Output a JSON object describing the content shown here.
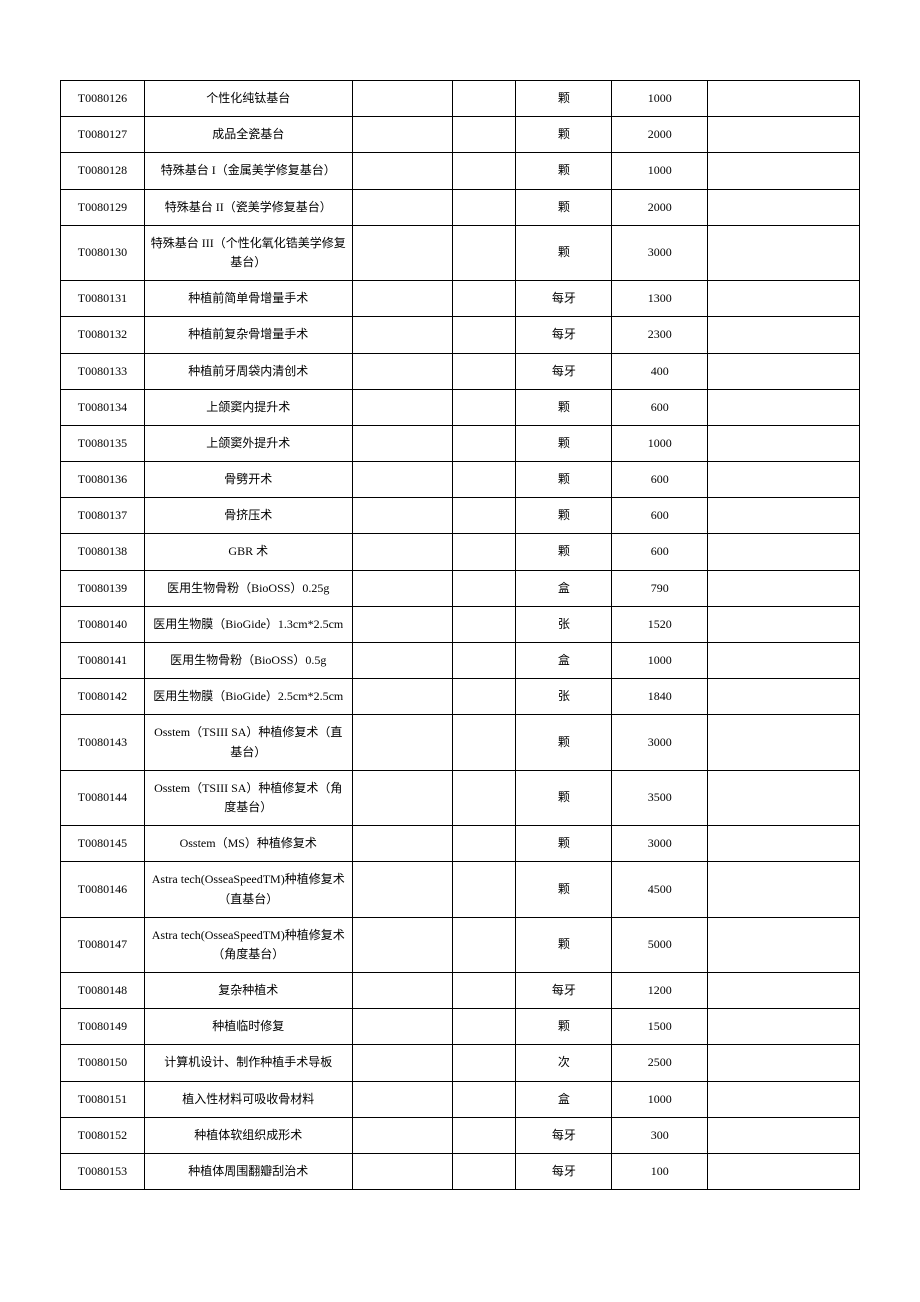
{
  "table": {
    "background_color": "#ffffff",
    "border_color": "#000000",
    "text_color": "#000000",
    "font_size": 12,
    "columns": [
      {
        "key": "code",
        "width": "10.5%",
        "align": "center"
      },
      {
        "key": "name",
        "width": "26%",
        "align": "center"
      },
      {
        "key": "empty1",
        "width": "12.5%",
        "align": "center"
      },
      {
        "key": "empty2",
        "width": "8%",
        "align": "center"
      },
      {
        "key": "unit",
        "width": "12%",
        "align": "center"
      },
      {
        "key": "price",
        "width": "12%",
        "align": "center"
      },
      {
        "key": "empty3",
        "width": "19%",
        "align": "center"
      }
    ],
    "rows": [
      {
        "code": "T0080126",
        "name": "个性化纯钛基台",
        "empty1": "",
        "empty2": "",
        "unit": "颗",
        "price": "1000",
        "empty3": ""
      },
      {
        "code": "T0080127",
        "name": "成品全瓷基台",
        "empty1": "",
        "empty2": "",
        "unit": "颗",
        "price": "2000",
        "empty3": ""
      },
      {
        "code": "T0080128",
        "name": "特殊基台 I（金属美学修复基台）",
        "empty1": "",
        "empty2": "",
        "unit": "颗",
        "price": "1000",
        "empty3": ""
      },
      {
        "code": "T0080129",
        "name": "特殊基台 II（瓷美学修复基台）",
        "empty1": "",
        "empty2": "",
        "unit": "颗",
        "price": "2000",
        "empty3": ""
      },
      {
        "code": "T0080130",
        "name": "特殊基台 III（个性化氧化锆美学修复基台）",
        "empty1": "",
        "empty2": "",
        "unit": "颗",
        "price": "3000",
        "empty3": ""
      },
      {
        "code": "T0080131",
        "name": "种植前简单骨增量手术",
        "empty1": "",
        "empty2": "",
        "unit": "每牙",
        "price": "1300",
        "empty3": ""
      },
      {
        "code": "T0080132",
        "name": "种植前复杂骨增量手术",
        "empty1": "",
        "empty2": "",
        "unit": "每牙",
        "price": "2300",
        "empty3": ""
      },
      {
        "code": "T0080133",
        "name": "种植前牙周袋内清创术",
        "empty1": "",
        "empty2": "",
        "unit": "每牙",
        "price": "400",
        "empty3": ""
      },
      {
        "code": "T0080134",
        "name": "上颌窦内提升术",
        "empty1": "",
        "empty2": "",
        "unit": "颗",
        "price": "600",
        "empty3": ""
      },
      {
        "code": "T0080135",
        "name": "上颌窦外提升术",
        "empty1": "",
        "empty2": "",
        "unit": "颗",
        "price": "1000",
        "empty3": ""
      },
      {
        "code": "T0080136",
        "name": "骨劈开术",
        "empty1": "",
        "empty2": "",
        "unit": "颗",
        "price": "600",
        "empty3": ""
      },
      {
        "code": "T0080137",
        "name": "骨挤压术",
        "empty1": "",
        "empty2": "",
        "unit": "颗",
        "price": "600",
        "empty3": ""
      },
      {
        "code": "T0080138",
        "name": "GBR 术",
        "empty1": "",
        "empty2": "",
        "unit": "颗",
        "price": "600",
        "empty3": ""
      },
      {
        "code": "T0080139",
        "name": "医用生物骨粉（BioOSS）0.25g",
        "empty1": "",
        "empty2": "",
        "unit": "盒",
        "price": "790",
        "empty3": ""
      },
      {
        "code": "T0080140",
        "name": "医用生物膜（BioGide）1.3cm*2.5cm",
        "empty1": "",
        "empty2": "",
        "unit": "张",
        "price": "1520",
        "empty3": ""
      },
      {
        "code": "T0080141",
        "name": "医用生物骨粉（BioOSS）0.5g",
        "empty1": "",
        "empty2": "",
        "unit": "盒",
        "price": "1000",
        "empty3": ""
      },
      {
        "code": "T0080142",
        "name": "医用生物膜（BioGide）2.5cm*2.5cm",
        "empty1": "",
        "empty2": "",
        "unit": "张",
        "price": "1840",
        "empty3": ""
      },
      {
        "code": "T0080143",
        "name": "Osstem（TSIII SA）种植修复术（直基台）",
        "empty1": "",
        "empty2": "",
        "unit": "颗",
        "price": "3000",
        "empty3": ""
      },
      {
        "code": "T0080144",
        "name": "Osstem（TSIII SA）种植修复术（角度基台）",
        "empty1": "",
        "empty2": "",
        "unit": "颗",
        "price": "3500",
        "empty3": ""
      },
      {
        "code": "T0080145",
        "name": "Osstem（MS）种植修复术",
        "empty1": "",
        "empty2": "",
        "unit": "颗",
        "price": "3000",
        "empty3": ""
      },
      {
        "code": "T0080146",
        "name": "Astra tech(OsseaSpeedTM)种植修复术（直基台）",
        "empty1": "",
        "empty2": "",
        "unit": "颗",
        "price": "4500",
        "empty3": ""
      },
      {
        "code": "T0080147",
        "name": "Astra tech(OsseaSpeedTM)种植修复术（角度基台）",
        "empty1": "",
        "empty2": "",
        "unit": "颗",
        "price": "5000",
        "empty3": ""
      },
      {
        "code": "T0080148",
        "name": "复杂种植术",
        "empty1": "",
        "empty2": "",
        "unit": "每牙",
        "price": "1200",
        "empty3": ""
      },
      {
        "code": "T0080149",
        "name": "种植临时修复",
        "empty1": "",
        "empty2": "",
        "unit": "颗",
        "price": "1500",
        "empty3": ""
      },
      {
        "code": "T0080150",
        "name": "计算机设计、制作种植手术导板",
        "empty1": "",
        "empty2": "",
        "unit": "次",
        "price": "2500",
        "empty3": ""
      },
      {
        "code": "T0080151",
        "name": "植入性材料可吸收骨材料",
        "empty1": "",
        "empty2": "",
        "unit": "盒",
        "price": "1000",
        "empty3": ""
      },
      {
        "code": "T0080152",
        "name": "种植体软组织成形术",
        "empty1": "",
        "empty2": "",
        "unit": "每牙",
        "price": "300",
        "empty3": ""
      },
      {
        "code": "T0080153",
        "name": "种植体周围翻瓣刮治术",
        "empty1": "",
        "empty2": "",
        "unit": "每牙",
        "price": "100",
        "empty3": ""
      }
    ]
  }
}
